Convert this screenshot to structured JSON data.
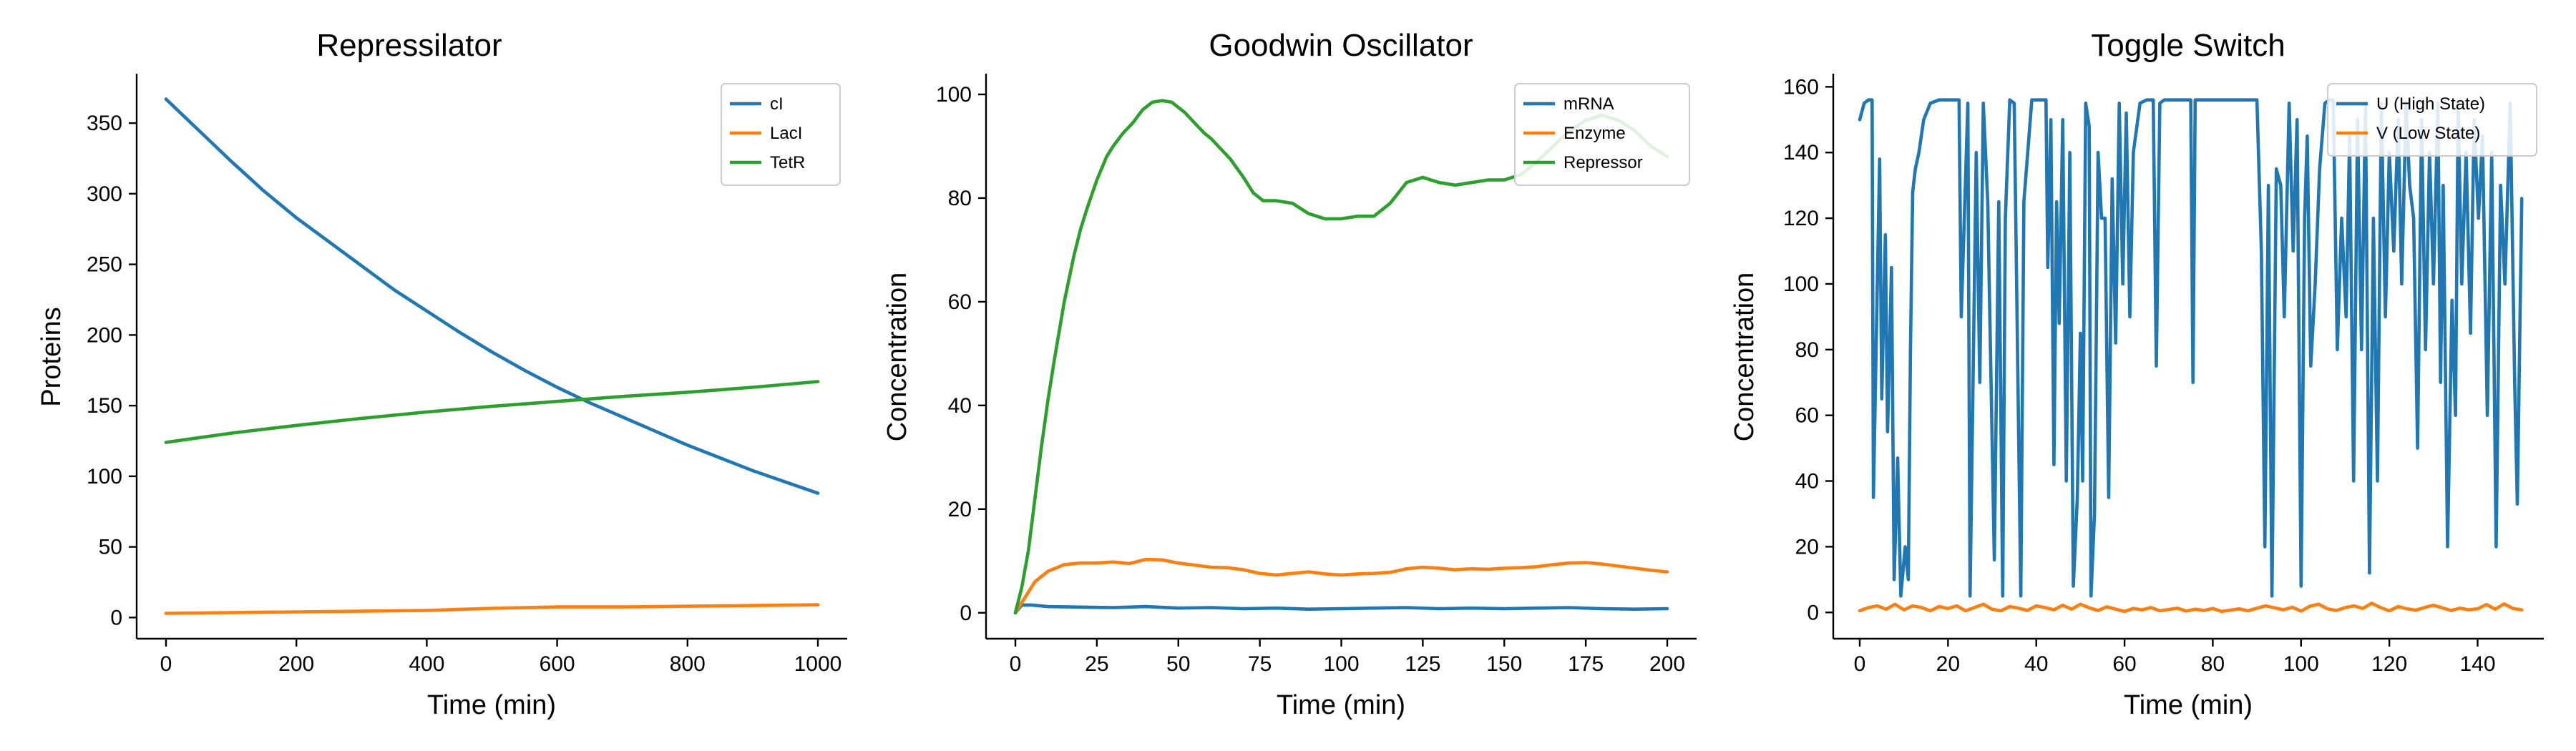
{
  "colors": {
    "blue": "#1f77b4",
    "orange": "#ff7f0e",
    "green": "#2ca02c"
  },
  "chart_data": [
    {
      "type": "line",
      "title": "Repressilator",
      "xlabel": "Time (min)",
      "ylabel": "Proteins",
      "xlim": [
        -45,
        1045
      ],
      "ylim": [
        -15,
        385
      ],
      "xticks": [
        0,
        200,
        400,
        600,
        800,
        1000
      ],
      "yticks": [
        0,
        50,
        100,
        150,
        200,
        250,
        300,
        350
      ],
      "legend_position": "top-right",
      "series": [
        {
          "name": "cI",
          "color": "#1f77b4",
          "x": [
            0,
            50,
            100,
            150,
            200,
            250,
            300,
            350,
            400,
            450,
            500,
            550,
            600,
            650,
            700,
            750,
            800,
            850,
            900,
            950,
            1000
          ],
          "y": [
            367,
            345,
            323,
            302,
            283,
            266,
            249,
            232,
            217,
            202,
            188,
            175,
            163,
            152,
            142,
            132,
            122,
            113,
            104,
            96,
            88
          ]
        },
        {
          "name": "LacI",
          "color": "#ff7f0e",
          "x": [
            0,
            100,
            200,
            300,
            400,
            500,
            600,
            700,
            800,
            900,
            1000
          ],
          "y": [
            3,
            3.5,
            4,
            4.5,
            5,
            6.5,
            7.5,
            7.5,
            8,
            8.5,
            9
          ]
        },
        {
          "name": "TetR",
          "color": "#2ca02c",
          "x": [
            0,
            100,
            200,
            300,
            400,
            500,
            600,
            700,
            800,
            900,
            1000
          ],
          "y": [
            124,
            130.5,
            136,
            141,
            145.5,
            149.5,
            153,
            156.5,
            159.5,
            163,
            167
          ]
        }
      ]
    },
    {
      "type": "line",
      "title": "Goodwin Oscillator",
      "xlabel": "Time (min)",
      "ylabel": "Concentration",
      "xlim": [
        -9,
        209
      ],
      "ylim": [
        -5,
        104
      ],
      "xticks": [
        0,
        25,
        50,
        75,
        100,
        125,
        150,
        175,
        200
      ],
      "yticks": [
        0,
        20,
        40,
        60,
        80,
        100
      ],
      "legend_position": "top-right",
      "series": [
        {
          "name": "mRNA",
          "color": "#1f77b4",
          "x": [
            0,
            2,
            5,
            10,
            20,
            30,
            40,
            50,
            60,
            70,
            80,
            90,
            100,
            110,
            120,
            130,
            140,
            150,
            160,
            170,
            180,
            190,
            200
          ],
          "y": [
            0,
            1.5,
            1.5,
            1.2,
            1.1,
            1.0,
            1.2,
            0.9,
            1.0,
            0.8,
            0.9,
            0.7,
            0.8,
            0.9,
            1.0,
            0.8,
            0.9,
            0.8,
            0.9,
            1.0,
            0.8,
            0.7,
            0.8
          ]
        },
        {
          "name": "Enzyme",
          "color": "#ff7f0e",
          "x": [
            0,
            3,
            6,
            10,
            15,
            20,
            25,
            30,
            35,
            40,
            45,
            50,
            55,
            60,
            65,
            70,
            75,
            80,
            85,
            90,
            95,
            100,
            105,
            110,
            115,
            120,
            125,
            130,
            135,
            140,
            145,
            150,
            155,
            160,
            165,
            170,
            175,
            180,
            185,
            190,
            195,
            200
          ],
          "y": [
            0,
            3,
            6,
            8,
            9.3,
            9.6,
            9.6,
            9.8,
            9.5,
            10.3,
            10.2,
            9.6,
            9.2,
            8.8,
            8.7,
            8.3,
            7.6,
            7.3,
            7.6,
            7.9,
            7.5,
            7.3,
            7.5,
            7.6,
            7.8,
            8.5,
            8.8,
            8.6,
            8.3,
            8.5,
            8.4,
            8.6,
            8.7,
            8.9,
            9.3,
            9.6,
            9.7,
            9.4,
            9.0,
            8.6,
            8.2,
            7.9
          ]
        },
        {
          "name": "Repressor",
          "color": "#2ca02c",
          "x": [
            0,
            2,
            4,
            6,
            8,
            10,
            12,
            15,
            18,
            20,
            22,
            25,
            28,
            30,
            33,
            36,
            39,
            42,
            45,
            48,
            50,
            52,
            55,
            58,
            60,
            63,
            66,
            70,
            73,
            76,
            80,
            85,
            90,
            95,
            100,
            105,
            110,
            115,
            120,
            125,
            130,
            135,
            140,
            145,
            150,
            155,
            160,
            165,
            170,
            175,
            180,
            185,
            190,
            195,
            200
          ],
          "y": [
            0,
            5,
            12,
            22,
            32,
            41,
            49,
            60,
            69,
            74,
            78,
            83.5,
            88,
            90,
            92.5,
            94.5,
            97,
            98.5,
            98.8,
            98.5,
            97.5,
            96.5,
            94.5,
            92.5,
            91.5,
            89.5,
            87.5,
            84,
            81,
            79.5,
            79.5,
            79,
            77,
            76,
            76,
            76.5,
            76.5,
            79,
            83,
            84,
            83,
            82.5,
            83,
            83.5,
            83.5,
            84.5,
            87,
            90,
            93,
            95,
            96,
            95,
            93,
            90,
            88
          ]
        }
      ]
    },
    {
      "type": "line",
      "title": "Toggle Switch",
      "xlabel": "Time (min)",
      "ylabel": "Concentration",
      "xlim": [
        -6,
        155
      ],
      "ylim": [
        -8,
        164
      ],
      "xticks": [
        0,
        20,
        40,
        60,
        80,
        100,
        120,
        140
      ],
      "yticks": [
        0,
        20,
        40,
        60,
        80,
        100,
        120,
        140,
        160
      ],
      "legend_position": "top-right",
      "series": [
        {
          "name": "U (High State)",
          "color": "#1f77b4",
          "x": [
            0,
            1,
            2,
            2.8,
            3.1,
            4.5,
            5.0,
            5.8,
            6.3,
            7.2,
            7.8,
            8.6,
            9.3,
            10.3,
            11,
            11.5,
            12,
            12.6,
            13.4,
            14.5,
            16,
            18,
            20,
            22.5,
            23,
            24.5,
            25,
            26.4,
            27.2,
            28,
            29,
            30.5,
            31.5,
            32.4,
            33,
            34,
            35,
            36.5,
            37.2,
            39,
            41,
            42.2,
            42.6,
            43.3,
            44,
            44.6,
            45.2,
            46,
            46.8,
            47.6,
            48.4,
            49.3,
            50,
            50.5,
            51.2,
            52,
            52.4,
            53.2,
            54,
            54.8,
            55.6,
            56.4,
            57.2,
            58,
            58.8,
            59.6,
            60.4,
            61.2,
            62,
            63.5,
            65,
            66.5,
            67.2,
            68,
            69,
            71,
            73,
            75,
            75.5,
            76,
            77.5,
            80,
            82.5,
            85,
            87.5,
            90,
            91,
            91.8,
            92.6,
            93.4,
            94.4,
            95.4,
            96.2,
            97.3,
            98.2,
            99.1,
            100,
            100.8,
            101.4,
            102.2,
            103.2,
            104.2,
            105.4,
            106.4,
            107.3,
            108.2,
            109.2,
            110.2,
            111,
            111.9,
            112.8,
            113.7,
            114.6,
            115.5,
            116.4,
            117.3,
            118.2,
            119.1,
            120,
            121,
            122,
            122.8,
            123.8,
            124.6,
            125.5,
            126.4,
            127.3,
            128.2,
            129.1,
            130,
            131,
            131.6,
            132.2,
            133.2,
            134.2,
            135,
            135.6,
            136.4,
            137.4,
            138.4,
            139.2,
            140.2,
            141.1,
            142.2,
            143.2,
            144.2,
            145.2,
            146.2,
            147.4,
            148.4,
            149,
            150
          ],
          "y": [
            150,
            155,
            156,
            156,
            35,
            138,
            65,
            115,
            55,
            105,
            10,
            47,
            5,
            20,
            10,
            80,
            128,
            135,
            140,
            150,
            155,
            156,
            156,
            156,
            90,
            155,
            5,
            140,
            70,
            155,
            125,
            16,
            125,
            5,
            120,
            156,
            155,
            5,
            125,
            156,
            156,
            156,
            105,
            150,
            45,
            125,
            88,
            150,
            40,
            140,
            8,
            35,
            85,
            40,
            155,
            148,
            5,
            30,
            140,
            120,
            120,
            35,
            132,
            82,
            155,
            100,
            152,
            90,
            140,
            155,
            156,
            156,
            75,
            155,
            156,
            156,
            156,
            156,
            70,
            156,
            156,
            156,
            156,
            156,
            156,
            156,
            110,
            20,
            130,
            5,
            135,
            130,
            90,
            155,
            110,
            150,
            8,
            120,
            145,
            75,
            100,
            135,
            155,
            156,
            156,
            80,
            120,
            90,
            145,
            40,
            150,
            80,
            155,
            12,
            120,
            40,
            155,
            90,
            140,
            110,
            150,
            100,
            155,
            130,
            120,
            50,
            150,
            80,
            140,
            100,
            155,
            70,
            130,
            20,
            95,
            60,
            155,
            100,
            140,
            85,
            150,
            120,
            145,
            60,
            140,
            20,
            130,
            100,
            155,
            70,
            33,
            126
          ]
        },
        {
          "name": "V (Low State)",
          "color": "#ff7f0e",
          "x": [
            0,
            2,
            4,
            6,
            8,
            10,
            12,
            14,
            16,
            18,
            20,
            22,
            24,
            26,
            28,
            30,
            32,
            34,
            36,
            38,
            40,
            42,
            44,
            46,
            48,
            50,
            52,
            54,
            56,
            58,
            60,
            62,
            64,
            66,
            68,
            70,
            72,
            74,
            76,
            78,
            80,
            82,
            84,
            86,
            88,
            90,
            92,
            94,
            96,
            98,
            100,
            102,
            104,
            106,
            108,
            110,
            112,
            114,
            116,
            118,
            120,
            122,
            124,
            126,
            128,
            130,
            132,
            134,
            136,
            138,
            140,
            142,
            144,
            146,
            148,
            150
          ],
          "y": [
            0.5,
            1.5,
            2,
            1,
            2.5,
            0.8,
            2,
            1.5,
            0.5,
            1.8,
            1.2,
            2,
            0.5,
            1.5,
            2.5,
            1,
            0.5,
            1.8,
            1.3,
            0.6,
            2,
            1.5,
            0.8,
            2.2,
            1,
            2.5,
            1.4,
            0.6,
            1.7,
            1,
            0.3,
            1.2,
            0.8,
            1.5,
            0.5,
            0.9,
            1.3,
            0.4,
            1,
            0.6,
            1.2,
            0.3,
            0.7,
            1.1,
            0.5,
            1.3,
            2,
            1.4,
            0.8,
            1.6,
            0.4,
            1.9,
            2.5,
            1.1,
            0.6,
            1.5,
            2,
            1.2,
            2.8,
            1.5,
            0.5,
            1.8,
            1.1,
            0.7,
            1.5,
            2.2,
            1.4,
            0.6,
            1.3,
            0.8,
            1.1,
            2.4,
            1,
            2.6,
            1.2,
            0.8
          ]
        }
      ]
    }
  ]
}
